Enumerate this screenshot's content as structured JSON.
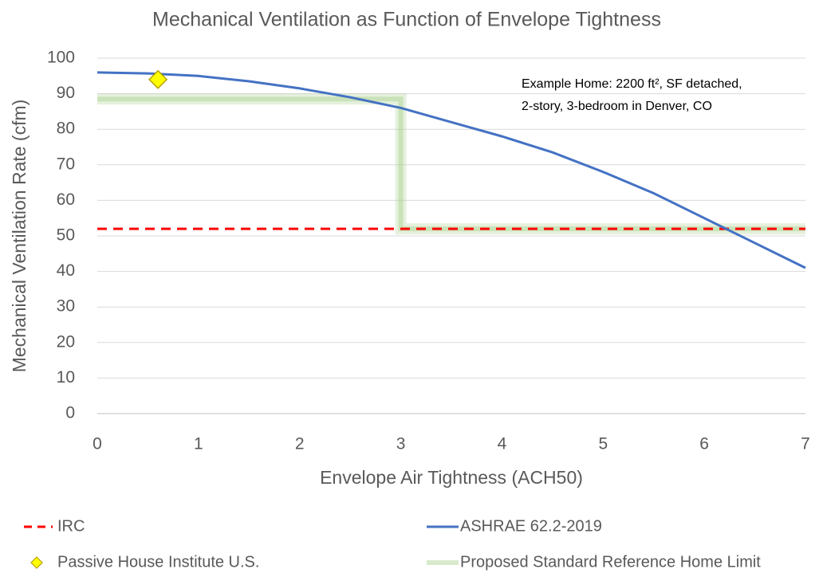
{
  "chart_data": {
    "type": "line",
    "title": "Mechanical Ventilation as Function of Envelope Tightness",
    "x_label": "Envelope Air Tightness (ACH50)",
    "y_label": "Mechanical Ventilation Rate (cfm)",
    "annotation": [
      "Example Home: 2200 ft², SF detached,",
      "2-story, 3-bedroom in Denver, CO"
    ],
    "xlim": [
      0,
      7
    ],
    "xticks": [
      0,
      1,
      2,
      3,
      4,
      5,
      6,
      7
    ],
    "ylim": [
      0,
      100
    ],
    "yticks": [
      0,
      10,
      20,
      30,
      40,
      50,
      60,
      70,
      80,
      90,
      100
    ],
    "grid": true,
    "legend": "bottom",
    "series": [
      {
        "name": "IRC",
        "color": "#ff0000",
        "style": "dashed",
        "x": [
          0,
          7
        ],
        "values": [
          52,
          52
        ]
      },
      {
        "name": "ASHRAE 62.2-2019",
        "color": "#4472c4",
        "style": "solid",
        "x": [
          0,
          0.5,
          1,
          1.5,
          2,
          2.5,
          3,
          3.5,
          4,
          4.5,
          5,
          5.5,
          6,
          6.5,
          7
        ],
        "values": [
          96,
          95.7,
          95,
          93.5,
          91.5,
          89,
          86,
          82,
          78,
          73.5,
          68,
          62,
          55,
          48,
          41
        ]
      },
      {
        "name": "Passive House Institute U.S.",
        "color": "#ffff00",
        "style": "marker",
        "x": [
          0.6
        ],
        "values": [
          94
        ]
      },
      {
        "name": "Proposed Standard Reference Home Limit",
        "color": "#a9d18e",
        "style": "glow",
        "x": [
          0,
          3,
          3,
          7
        ],
        "values": [
          88.5,
          88.5,
          52,
          52
        ]
      }
    ]
  }
}
